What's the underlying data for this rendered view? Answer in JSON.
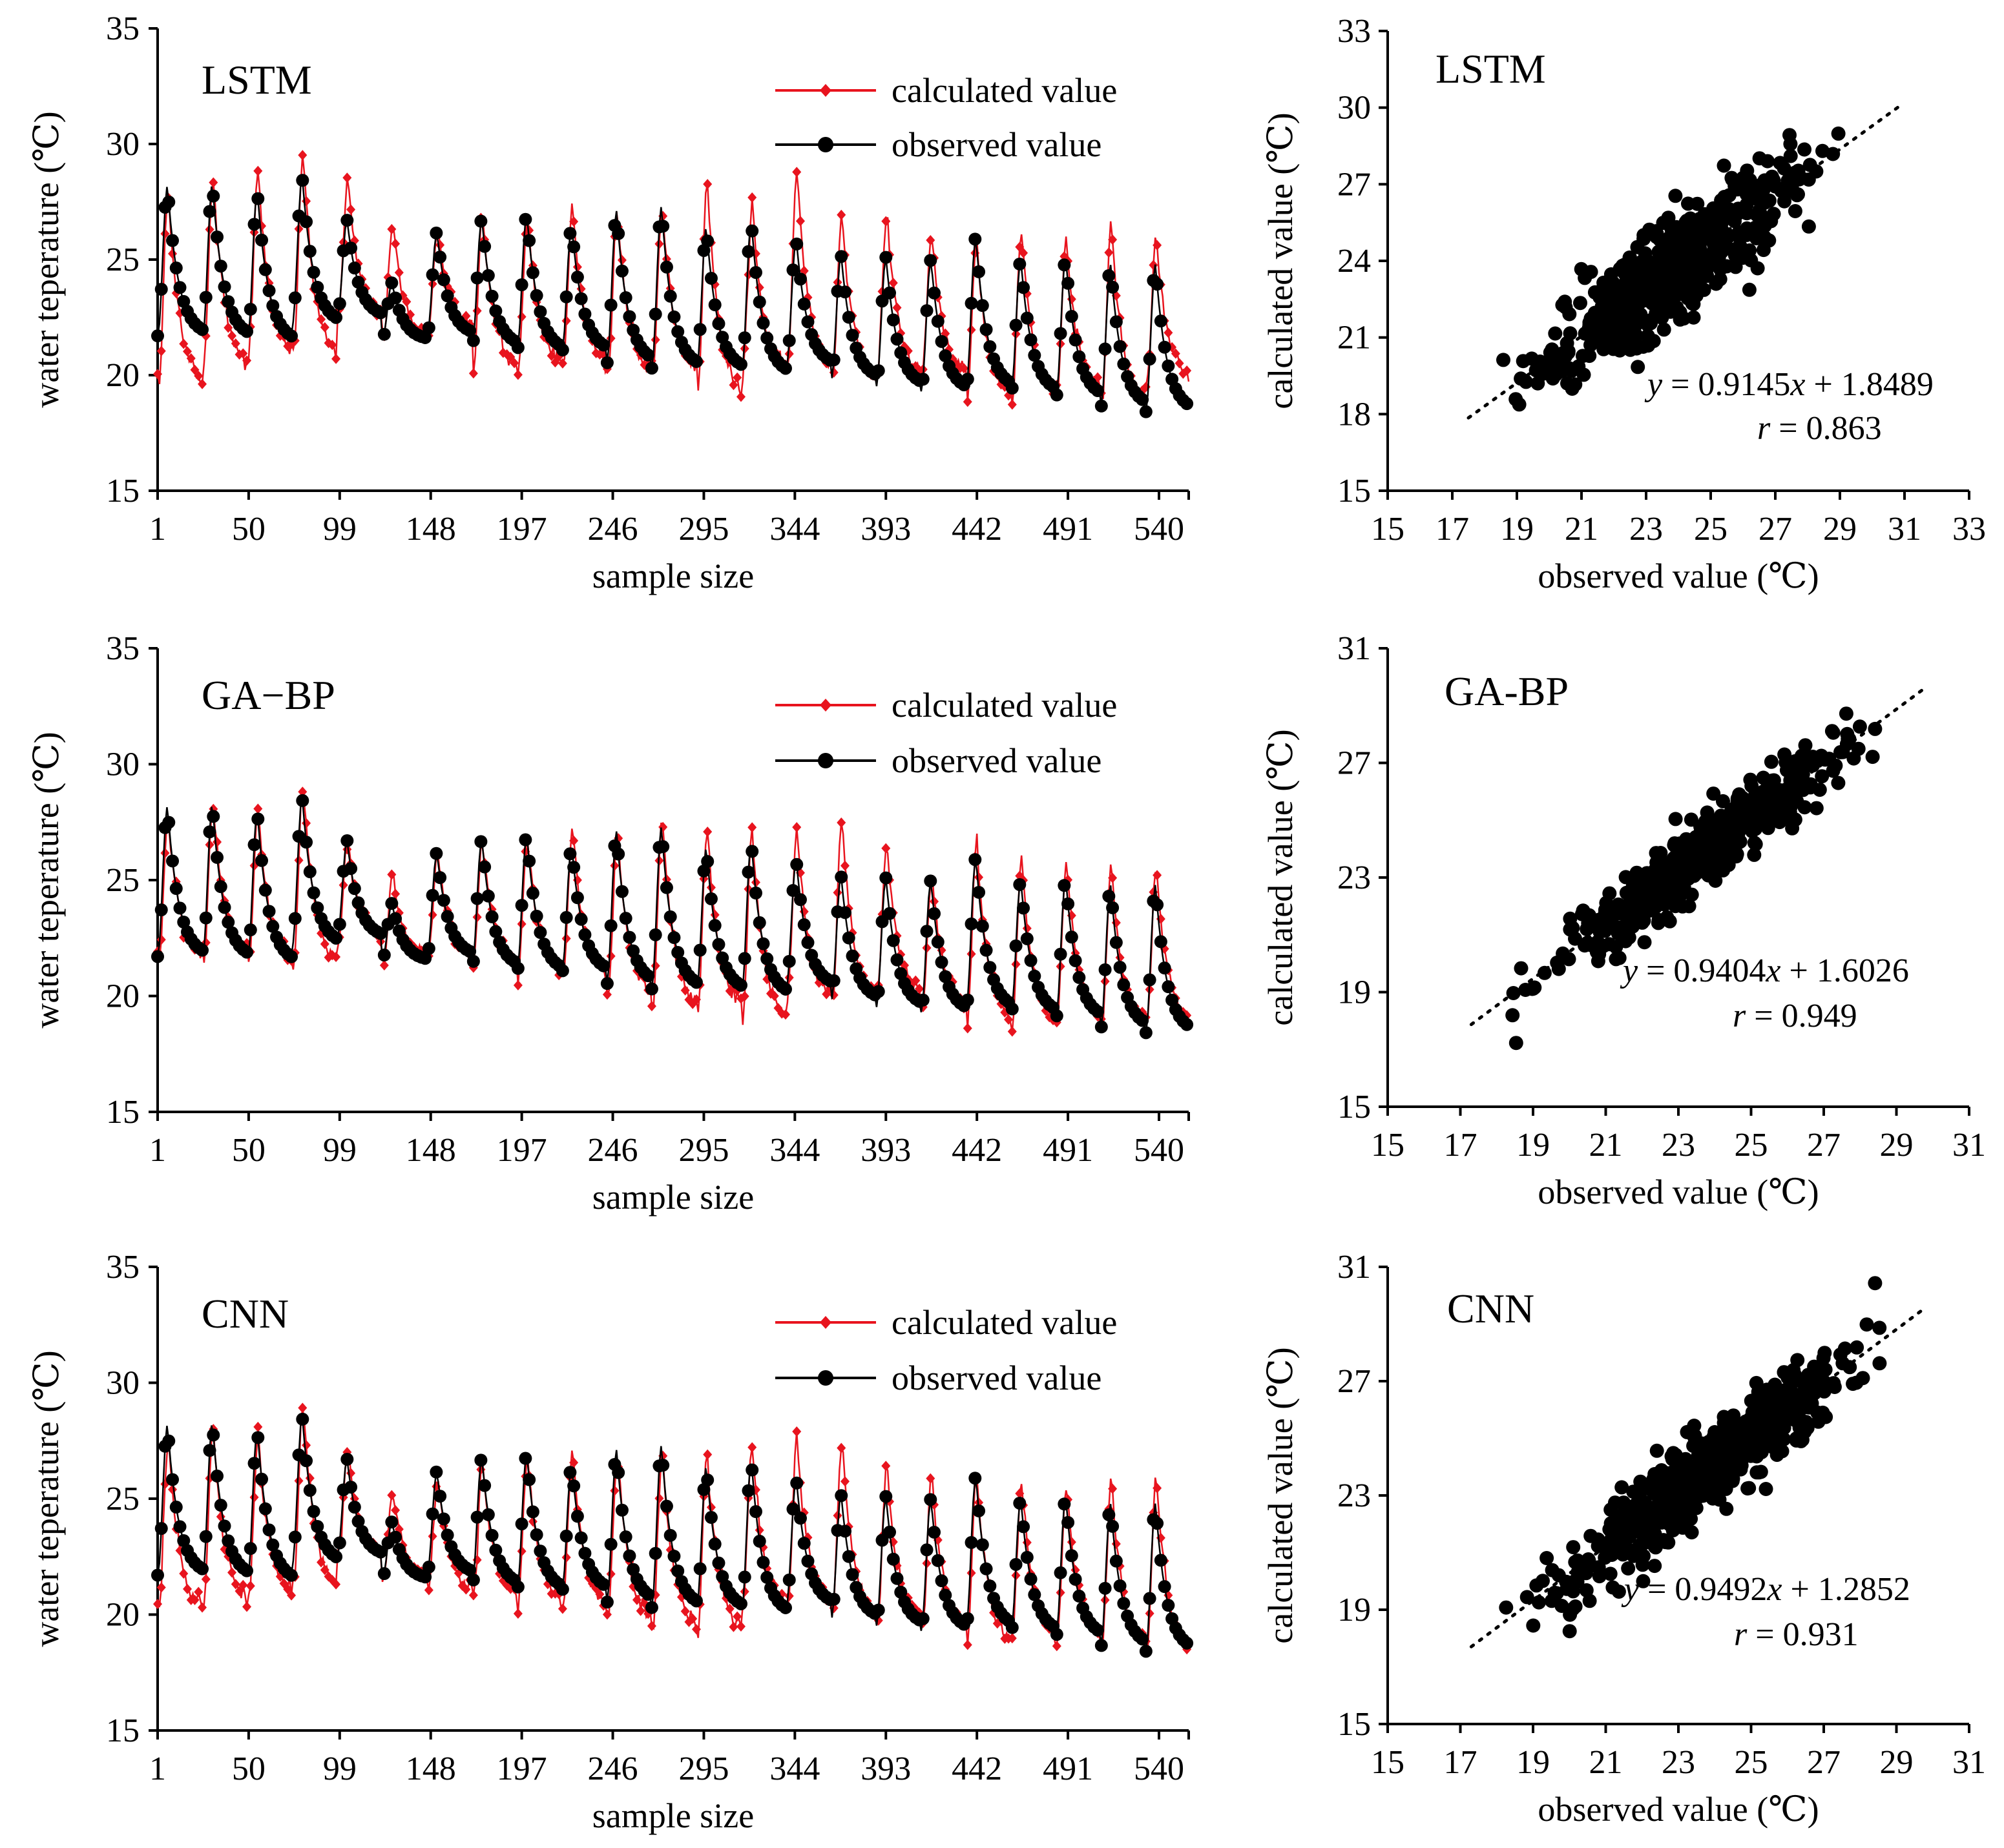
{
  "colors": {
    "calculated": "#e8141e",
    "observed": "#000000",
    "axis": "#000000"
  },
  "chart_data": [
    {
      "type": "line",
      "title": "LSTM",
      "xlabel": "sample size",
      "ylabel": "water teperature (℃)",
      "xlim": [
        1,
        556
      ],
      "ylim": [
        15,
        35
      ],
      "xtick_labels": [
        "1",
        "50",
        "99",
        "148",
        "197",
        "246",
        "295",
        "344",
        "393",
        "442",
        "491",
        "540"
      ],
      "ytick_labels": [
        "15",
        "20",
        "25",
        "30",
        "35"
      ],
      "legend": [
        "calculated value",
        "observed value"
      ],
      "series": [
        {
          "name": "calculated value",
          "peaks": [
            28.0,
            28.7,
            28.8,
            29.6,
            28.5,
            26.8,
            26.3,
            27.0,
            26.9,
            27.4,
            27.2,
            27.3,
            28.5,
            27.2,
            28.9,
            27.0,
            27.1,
            26.1,
            26.1,
            26.3,
            25.7,
            26.5,
            26.0
          ],
          "troughs": [
            19.5,
            20.2,
            20.8,
            20.6,
            22.4,
            21.3,
            21.8,
            20.1,
            20.3,
            20.2,
            19.8,
            20.1,
            19.0,
            20.0,
            20.1,
            19.6,
            19.9,
            19.9,
            18.8,
            18.9,
            19.2,
            18.6,
            19.7
          ]
        },
        {
          "name": "observed value",
          "peaks": [
            28.2,
            28.3,
            28.0,
            28.6,
            26.7,
            24.0,
            26.2,
            26.8,
            27.0,
            26.5,
            27.1,
            27.3,
            26.4,
            26.7,
            25.9,
            25.2,
            25.1,
            25.0,
            26.0,
            25.0,
            25.1,
            24.8,
            24.8
          ],
          "troughs": [
            21.7,
            21.6,
            21.4,
            22.2,
            22.5,
            21.5,
            21.7,
            21.2,
            21.0,
            21.0,
            20.5,
            20.3,
            20.2,
            20.0,
            20.4,
            19.8,
            19.5,
            19.3,
            19.4,
            19.2,
            19.0,
            18.6,
            18.4
          ]
        }
      ]
    },
    {
      "type": "scatter",
      "title": "LSTM",
      "xlabel": "observed value (℃)",
      "ylabel": "calculated value (℃)",
      "xlim": [
        15,
        33
      ],
      "ylim": [
        15,
        33
      ],
      "xtick_labels": [
        "15",
        "17",
        "19",
        "21",
        "23",
        "25",
        "27",
        "29",
        "31",
        "33"
      ],
      "ytick_labels": [
        "15",
        "18",
        "21",
        "24",
        "27",
        "30",
        "33"
      ],
      "fit": {
        "slope": 0.9145,
        "intercept": 1.8489,
        "r": 0.863
      },
      "fit_x_range": [
        17.5,
        30.8
      ],
      "equation": {
        "y": "y",
        "equals": " = 0.9145",
        "x": "x",
        "rest": " + 1.8489",
        "r": "r",
        "r_value": " = 0.863"
      },
      "points": {
        "count": 560,
        "x_range": [
          18.2,
          29.7
        ],
        "spread": 1.0
      }
    },
    {
      "type": "line",
      "title": "GA−BP",
      "xlabel": "sample size",
      "ylabel": "water teperature (℃)",
      "xlim": [
        1,
        556
      ],
      "ylim": [
        15,
        35
      ],
      "xtick_labels": [
        "1",
        "50",
        "99",
        "148",
        "197",
        "246",
        "295",
        "344",
        "393",
        "442",
        "491",
        "540"
      ],
      "ytick_labels": [
        "15",
        "20",
        "25",
        "30",
        "35"
      ],
      "legend": [
        "calculated value",
        "observed value"
      ],
      "series": [
        {
          "name": "calculated value",
          "peaks": [
            27.6,
            28.2,
            28.0,
            29.1,
            26.6,
            25.2,
            26.2,
            26.7,
            26.9,
            27.2,
            27.0,
            27.7,
            27.2,
            27.3,
            27.3,
            27.6,
            26.5,
            25.3,
            26.6,
            25.9,
            25.8,
            25.5,
            25.7
          ],
          "troughs": [
            21.5,
            21.7,
            21.3,
            21.2,
            22.4,
            21.5,
            21.6,
            21.2,
            20.8,
            20.8,
            19.9,
            19.5,
            19.4,
            18.8,
            19.7,
            19.6,
            20.0,
            19.4,
            18.7,
            18.6,
            19.0,
            18.6,
            18.8
          ]
        },
        {
          "name": "observed value",
          "peaks": [
            28.2,
            28.3,
            28.0,
            28.6,
            26.7,
            24.0,
            26.2,
            26.8,
            27.0,
            26.5,
            27.1,
            27.3,
            26.4,
            26.7,
            25.9,
            25.2,
            25.1,
            25.0,
            26.0,
            25.0,
            25.1,
            24.8,
            24.8
          ],
          "troughs": [
            21.7,
            21.6,
            21.4,
            22.2,
            22.5,
            21.5,
            21.7,
            21.2,
            21.0,
            21.0,
            20.5,
            20.3,
            20.2,
            20.0,
            20.4,
            19.8,
            19.5,
            19.3,
            19.4,
            19.2,
            19.0,
            18.6,
            18.4
          ]
        }
      ]
    },
    {
      "type": "scatter",
      "title": "GA-BP",
      "xlabel": "observed value (℃)",
      "ylabel": "calculated value (℃)",
      "xlim": [
        15,
        31
      ],
      "ylim": [
        15,
        31
      ],
      "xtick_labels": [
        "15",
        "17",
        "19",
        "21",
        "23",
        "25",
        "27",
        "29",
        "31"
      ],
      "ytick_labels": [
        "15",
        "19",
        "23",
        "27",
        "31"
      ],
      "fit": {
        "slope": 0.9404,
        "intercept": 1.6026,
        "r": 0.949
      },
      "fit_x_range": [
        17.3,
        29.8
      ],
      "equation": {
        "y": "y",
        "equals": " = 0.9404",
        "x": "x",
        "rest": " + 1.6026",
        "r": "r",
        "r_value": " = 0.949"
      },
      "points": {
        "count": 560,
        "x_range": [
          18.0,
          29.3
        ],
        "spread": 0.6
      }
    },
    {
      "type": "line",
      "title": "CNN",
      "xlabel": "sample size",
      "ylabel": "water teperature (℃)",
      "xlim": [
        1,
        556
      ],
      "ylim": [
        15,
        35
      ],
      "xtick_labels": [
        "1",
        "50",
        "99",
        "148",
        "197",
        "246",
        "295",
        "344",
        "393",
        "442",
        "491",
        "540"
      ],
      "ytick_labels": [
        "15",
        "20",
        "25",
        "30",
        "35"
      ],
      "legend": [
        "calculated value",
        "observed value"
      ],
      "series": [
        {
          "name": "calculated value",
          "peaks": [
            27.6,
            28.2,
            27.8,
            29.2,
            27.1,
            25.3,
            26.0,
            26.5,
            26.9,
            27.1,
            27.0,
            27.2,
            26.9,
            27.3,
            27.6,
            27.6,
            26.4,
            26.1,
            26.1,
            25.9,
            25.7,
            25.8,
            26.1
          ],
          "troughs": [
            20.0,
            20.3,
            20.6,
            21.0,
            22.4,
            21.5,
            21.0,
            20.6,
            20.4,
            20.2,
            19.6,
            19.2,
            19.1,
            20.3,
            20.2,
            19.8,
            19.5,
            19.3,
            18.6,
            18.8,
            18.8,
            18.4,
            18.2
          ]
        },
        {
          "name": "observed value",
          "peaks": [
            28.2,
            28.3,
            28.0,
            28.6,
            26.7,
            24.0,
            26.2,
            26.8,
            27.0,
            26.5,
            27.1,
            27.3,
            26.4,
            26.7,
            25.9,
            25.2,
            25.1,
            25.0,
            26.0,
            25.0,
            25.1,
            24.8,
            24.8
          ],
          "troughs": [
            21.7,
            21.6,
            21.4,
            22.2,
            22.5,
            21.5,
            21.7,
            21.2,
            21.0,
            21.0,
            20.5,
            20.3,
            20.2,
            20.0,
            20.4,
            19.8,
            19.5,
            19.3,
            19.4,
            19.2,
            19.0,
            18.6,
            18.4
          ]
        }
      ]
    },
    {
      "type": "scatter",
      "title": "CNN",
      "xlabel": "observed value (℃)",
      "ylabel": "calculated value (℃)",
      "xlim": [
        15,
        31
      ],
      "ylim": [
        15,
        31
      ],
      "xtick_labels": [
        "15",
        "17",
        "19",
        "21",
        "23",
        "25",
        "27",
        "29",
        "31"
      ],
      "ytick_labels": [
        "15",
        "19",
        "23",
        "27",
        "31"
      ],
      "fit": {
        "slope": 0.9492,
        "intercept": 1.2852,
        "r": 0.931
      },
      "fit_x_range": [
        17.3,
        29.8
      ],
      "equation": {
        "y": "y",
        "equals": " = 0.9492",
        "x": "x",
        "rest": " + 1.2852",
        "r": "r",
        "r_value": " = 0.931"
      },
      "points": {
        "count": 560,
        "x_range": [
          18.0,
          29.3
        ],
        "spread": 0.75
      }
    }
  ]
}
